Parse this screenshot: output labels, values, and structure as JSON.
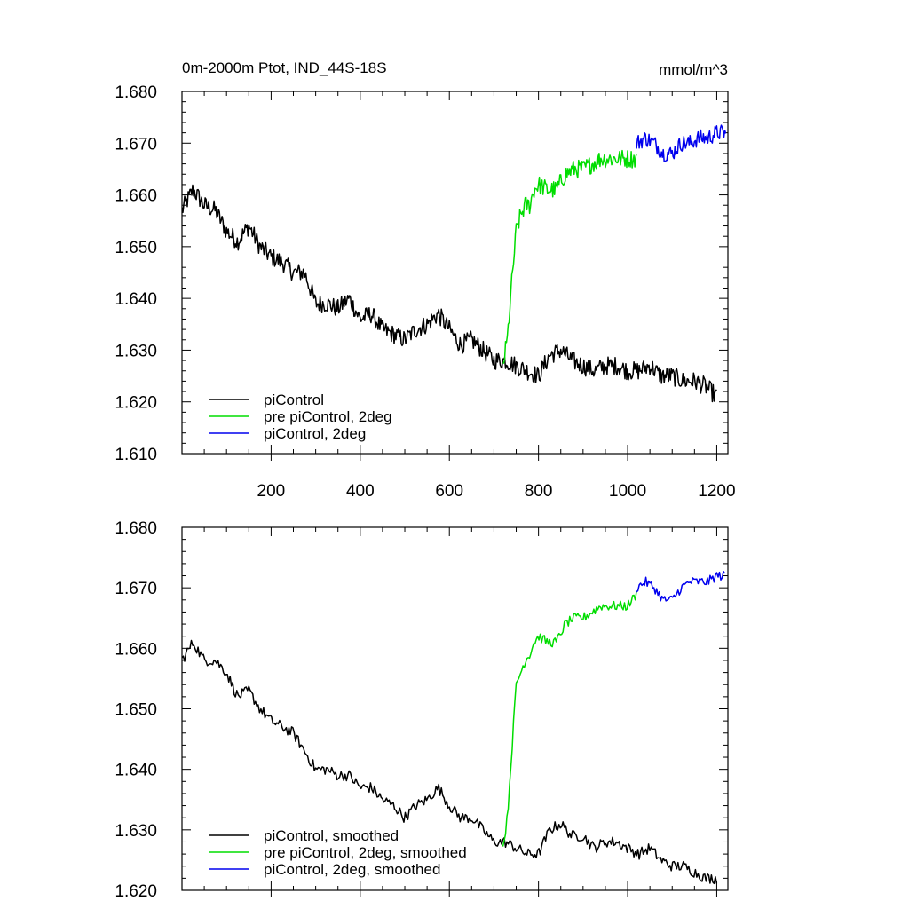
{
  "figure": {
    "title": "0m-2000m Ptot, IND_44S-18S",
    "units": "mmol/m^3"
  },
  "chart_data": [
    {
      "type": "line",
      "title": "0m-2000m Ptot, IND_44S-18S",
      "units": "mmol/m^3",
      "xlim": [
        0,
        1225
      ],
      "ylim": [
        1.61,
        1.68
      ],
      "x_ticks": [
        200,
        400,
        600,
        800,
        1000,
        1200
      ],
      "x_tick_labels": [
        "200",
        "400",
        "600",
        "800",
        "1000",
        "1200"
      ],
      "y_ticks": [
        1.61,
        1.62,
        1.63,
        1.64,
        1.65,
        1.66,
        1.67,
        1.68
      ],
      "y_tick_labels": [
        "1.610",
        "1.620",
        "1.630",
        "1.640",
        "1.650",
        "1.660",
        "1.670",
        "1.680"
      ],
      "legend": "bottom-left",
      "series": [
        {
          "name": "piControl",
          "color": "#000000",
          "x": [
            0,
            25,
            50,
            75,
            100,
            125,
            150,
            175,
            200,
            225,
            250,
            275,
            300,
            325,
            350,
            375,
            400,
            425,
            450,
            475,
            500,
            525,
            550,
            575,
            600,
            625,
            650,
            675,
            700,
            725,
            750,
            775,
            800,
            825,
            850,
            875,
            900,
            925,
            950,
            975,
            1000,
            1025,
            1050,
            1075,
            1100,
            1125,
            1150,
            1175,
            1200
          ],
          "y": [
            1.657,
            1.661,
            1.658,
            1.657,
            1.653,
            1.651,
            1.654,
            1.65,
            1.648,
            1.647,
            1.645,
            1.645,
            1.639,
            1.639,
            1.638,
            1.64,
            1.636,
            1.637,
            1.634,
            1.633,
            1.632,
            1.634,
            1.635,
            1.637,
            1.634,
            1.631,
            1.632,
            1.63,
            1.628,
            1.628,
            1.627,
            1.626,
            1.625,
            1.629,
            1.63,
            1.628,
            1.627,
            1.626,
            1.627,
            1.627,
            1.626,
            1.626,
            1.627,
            1.625,
            1.625,
            1.624,
            1.624,
            1.623,
            1.621
          ],
          "noise_amplitude": 0.0018
        },
        {
          "name": "pre piControl, 2deg",
          "color": "#00dd00",
          "x": [
            720,
            730,
            740,
            750,
            760,
            770,
            780,
            790,
            800,
            820,
            840,
            860,
            880,
            900,
            920,
            940,
            960,
            980,
            1000,
            1020
          ],
          "y": [
            1.627,
            1.632,
            1.643,
            1.653,
            1.656,
            1.658,
            1.658,
            1.661,
            1.662,
            1.661,
            1.661,
            1.664,
            1.665,
            1.665,
            1.666,
            1.667,
            1.667,
            1.667,
            1.667,
            1.667
          ],
          "noise_amplitude": 0.0018
        },
        {
          "name": "piControl, 2deg",
          "color": "#0000ee",
          "x": [
            1020,
            1040,
            1060,
            1080,
            1100,
            1120,
            1140,
            1160,
            1180,
            1200,
            1220
          ],
          "y": [
            1.67,
            1.671,
            1.67,
            1.668,
            1.668,
            1.67,
            1.67,
            1.671,
            1.671,
            1.672,
            1.672
          ],
          "noise_amplitude": 0.0016
        }
      ]
    },
    {
      "type": "line",
      "title": "",
      "xlim": [
        0,
        1225
      ],
      "ylim": [
        1.62,
        1.68
      ],
      "y_ticks": [
        1.62,
        1.63,
        1.64,
        1.65,
        1.66,
        1.67,
        1.68
      ],
      "y_tick_labels": [
        "1.620",
        "1.630",
        "1.640",
        "1.650",
        "1.660",
        "1.670",
        "1.680"
      ],
      "legend": "bottom-left",
      "series": [
        {
          "name": "piControl, smoothed",
          "color": "#000000",
          "x": [
            0,
            25,
            50,
            75,
            100,
            125,
            150,
            175,
            200,
            225,
            250,
            275,
            300,
            325,
            350,
            375,
            400,
            425,
            450,
            475,
            500,
            525,
            550,
            575,
            600,
            625,
            650,
            675,
            700,
            725,
            750,
            775,
            800,
            825,
            850,
            875,
            900,
            925,
            950,
            975,
            1000,
            1025,
            1050,
            1075,
            1100,
            1125,
            1150,
            1175,
            1200
          ],
          "y": [
            1.658,
            1.661,
            1.658,
            1.658,
            1.656,
            1.652,
            1.653,
            1.65,
            1.648,
            1.647,
            1.646,
            1.643,
            1.64,
            1.64,
            1.639,
            1.639,
            1.637,
            1.637,
            1.635,
            1.634,
            1.632,
            1.634,
            1.635,
            1.637,
            1.634,
            1.632,
            1.632,
            1.63,
            1.628,
            1.628,
            1.627,
            1.626,
            1.626,
            1.63,
            1.631,
            1.629,
            1.629,
            1.627,
            1.628,
            1.628,
            1.627,
            1.626,
            1.627,
            1.625,
            1.624,
            1.624,
            1.623,
            1.622,
            1.622
          ],
          "noise_amplitude": 0.0009
        },
        {
          "name": "pre piControl, 2deg, smoothed",
          "color": "#00dd00",
          "x": [
            720,
            730,
            740,
            750,
            760,
            770,
            780,
            790,
            800,
            820,
            840,
            860,
            880,
            900,
            920,
            940,
            960,
            980,
            1000,
            1020
          ],
          "y": [
            1.627,
            1.632,
            1.643,
            1.654,
            1.656,
            1.658,
            1.659,
            1.661,
            1.662,
            1.661,
            1.661,
            1.664,
            1.665,
            1.665,
            1.666,
            1.667,
            1.667,
            1.667,
            1.667,
            1.669
          ],
          "noise_amplitude": 0.0008
        },
        {
          "name": "piControl, 2deg, smoothed",
          "color": "#0000ee",
          "x": [
            1020,
            1040,
            1060,
            1080,
            1100,
            1120,
            1140,
            1160,
            1180,
            1200,
            1220
          ],
          "y": [
            1.67,
            1.671,
            1.67,
            1.668,
            1.668,
            1.67,
            1.671,
            1.671,
            1.671,
            1.672,
            1.672
          ],
          "noise_amplitude": 0.0008
        }
      ]
    }
  ]
}
